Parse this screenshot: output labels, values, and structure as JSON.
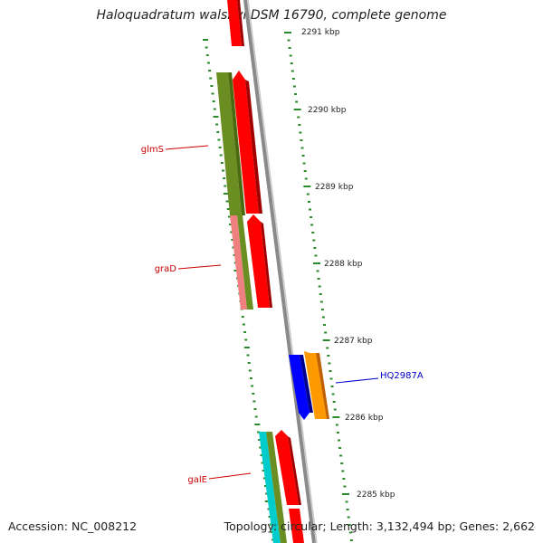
{
  "title": "Haloquadratum walsbyi DSM 16790, complete genome",
  "accession": "Accession: NC_008212",
  "topology": "Topology: circular; Length: 3,132,494 bp; Genes: 2,662",
  "kbp_labels": [
    "2291 kbp",
    "2290 kbp",
    "2289 kbp",
    "2288 kbp",
    "2287 kbp",
    "2286 kbp",
    "2285 kbp"
  ],
  "gene_labels": [
    {
      "text": "glmS",
      "color": "#cc0000"
    },
    {
      "text": "graD",
      "color": "#cc0000"
    },
    {
      "text": "galE",
      "color": "#cc0000"
    },
    {
      "text": "HQ2987A",
      "color": "#0000cc"
    }
  ],
  "colors": {
    "backbone": "#8a8a8a",
    "tick": "#2a8a2a",
    "forward_cds": "#ff0000",
    "olive_feature": "#6b8e23",
    "salmon_feature": "#f08080",
    "blue_feature": "#0000ff",
    "orange_feature": "#ff9900",
    "cyan_feature": "#00cccc"
  }
}
